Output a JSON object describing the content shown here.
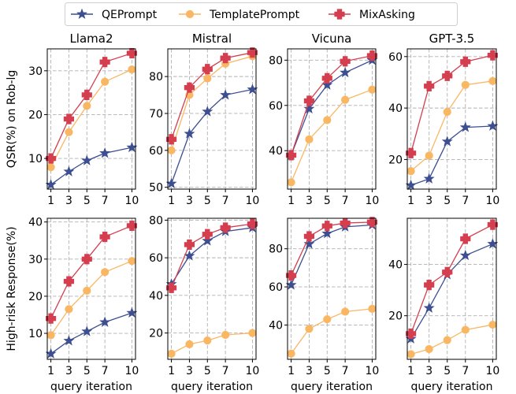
{
  "legend": {
    "items": [
      {
        "name": "QEPrompt",
        "color": "#3d4f91",
        "marker": "star"
      },
      {
        "name": "TemplatePrompt",
        "color": "#f9b764",
        "marker": "circle"
      },
      {
        "name": "MixAsking",
        "color": "#d43e4f",
        "marker": "plus"
      }
    ]
  },
  "chart_data": [
    {
      "type": "line",
      "title": "Llama2",
      "ylabel": "QSR(%) on Rob-lg",
      "xlabel": "",
      "categories": [
        "1",
        "3",
        "5",
        "7",
        "10"
      ],
      "ylim": [
        3,
        35
      ],
      "yticks": [
        10,
        20,
        30
      ],
      "series": [
        {
          "name": "QEPrompt",
          "values": [
            4,
            7,
            9.5,
            11.2,
            12.5
          ]
        },
        {
          "name": "TemplatePrompt",
          "values": [
            8,
            16,
            22,
            27.5,
            30.3
          ]
        },
        {
          "name": "MixAsking",
          "values": [
            10,
            19,
            24.5,
            32,
            34
          ]
        }
      ]
    },
    {
      "type": "line",
      "title": "Mistral",
      "ylabel": "",
      "xlabel": "",
      "categories": [
        "1",
        "3",
        "5",
        "7",
        "10"
      ],
      "ylim": [
        49.5,
        87.5
      ],
      "yticks": [
        50,
        60,
        70,
        80
      ],
      "series": [
        {
          "name": "QEPrompt",
          "values": [
            51,
            64.5,
            70.5,
            75,
            76.5
          ]
        },
        {
          "name": "TemplatePrompt",
          "values": [
            60,
            75,
            79.5,
            83.5,
            85.5
          ]
        },
        {
          "name": "MixAsking",
          "values": [
            63,
            77,
            82,
            85,
            86.5
          ]
        }
      ]
    },
    {
      "type": "line",
      "title": "Vicuna",
      "ylabel": "",
      "xlabel": "",
      "categories": [
        "1",
        "3",
        "5",
        "7",
        "10"
      ],
      "ylim": [
        23,
        85
      ],
      "yticks": [
        40,
        60,
        80
      ],
      "series": [
        {
          "name": "QEPrompt",
          "values": [
            38,
            58.5,
            69,
            74.5,
            80
          ]
        },
        {
          "name": "TemplatePrompt",
          "values": [
            26,
            45,
            53.5,
            62.5,
            67
          ]
        },
        {
          "name": "MixAsking",
          "values": [
            38,
            62,
            72,
            79.5,
            82
          ]
        }
      ]
    },
    {
      "type": "line",
      "title": "GPT-3.5",
      "ylabel": "",
      "xlabel": "",
      "categories": [
        "1",
        "3",
        "5",
        "7",
        "10"
      ],
      "ylim": [
        8.5,
        63
      ],
      "yticks": [
        20,
        40,
        60
      ],
      "series": [
        {
          "name": "QEPrompt",
          "values": [
            10,
            12.5,
            27,
            32.5,
            33
          ]
        },
        {
          "name": "TemplatePrompt",
          "values": [
            15.5,
            21.5,
            38.5,
            49,
            50.5
          ]
        },
        {
          "name": "MixAsking",
          "values": [
            22.5,
            48.5,
            52.5,
            58,
            60.5
          ]
        }
      ]
    },
    {
      "type": "line",
      "title": "",
      "ylabel": "High-risk Response(%)",
      "xlabel": "query iteration",
      "categories": [
        "1",
        "3",
        "5",
        "7",
        "10"
      ],
      "ylim": [
        3,
        41
      ],
      "yticks": [
        10,
        20,
        30,
        40
      ],
      "series": [
        {
          "name": "QEPrompt",
          "values": [
            4.5,
            8,
            10.5,
            13,
            15.5
          ]
        },
        {
          "name": "TemplatePrompt",
          "values": [
            9.5,
            16.5,
            21.5,
            26.5,
            29.5
          ]
        },
        {
          "name": "MixAsking",
          "values": [
            14,
            24,
            30,
            36,
            39
          ]
        }
      ]
    },
    {
      "type": "line",
      "title": "",
      "ylabel": "",
      "xlabel": "query iteration",
      "categories": [
        "1",
        "3",
        "5",
        "7",
        "10"
      ],
      "ylim": [
        6,
        81
      ],
      "yticks": [
        20,
        40,
        60,
        80
      ],
      "series": [
        {
          "name": "QEPrompt",
          "values": [
            46,
            61,
            69,
            74,
            76
          ]
        },
        {
          "name": "TemplatePrompt",
          "values": [
            9,
            14,
            16,
            19,
            20
          ]
        },
        {
          "name": "MixAsking",
          "values": [
            44,
            67,
            72.5,
            76,
            78
          ]
        }
      ]
    },
    {
      "type": "line",
      "title": "",
      "ylabel": "",
      "xlabel": "query iteration",
      "categories": [
        "1",
        "3",
        "5",
        "7",
        "10"
      ],
      "ylim": [
        22,
        96
      ],
      "yticks": [
        40,
        60,
        80
      ],
      "series": [
        {
          "name": "QEPrompt",
          "values": [
            61,
            82.5,
            88,
            91.5,
            92.5
          ]
        },
        {
          "name": "TemplatePrompt",
          "values": [
            25,
            38,
            43,
            47,
            48.5
          ]
        },
        {
          "name": "MixAsking",
          "values": [
            66,
            86.5,
            92,
            93.5,
            94
          ]
        }
      ]
    },
    {
      "type": "line",
      "title": "",
      "ylabel": "",
      "xlabel": "query iteration",
      "categories": [
        "1",
        "3",
        "5",
        "7",
        "10"
      ],
      "ylim": [
        3,
        58
      ],
      "yticks": [
        20,
        40
      ],
      "series": [
        {
          "name": "QEPrompt",
          "values": [
            11,
            23,
            36,
            43.5,
            48
          ]
        },
        {
          "name": "TemplatePrompt",
          "values": [
            5,
            7,
            10.5,
            14.5,
            16.5
          ]
        },
        {
          "name": "MixAsking",
          "values": [
            13,
            32,
            37,
            50,
            55.5
          ]
        }
      ]
    }
  ]
}
